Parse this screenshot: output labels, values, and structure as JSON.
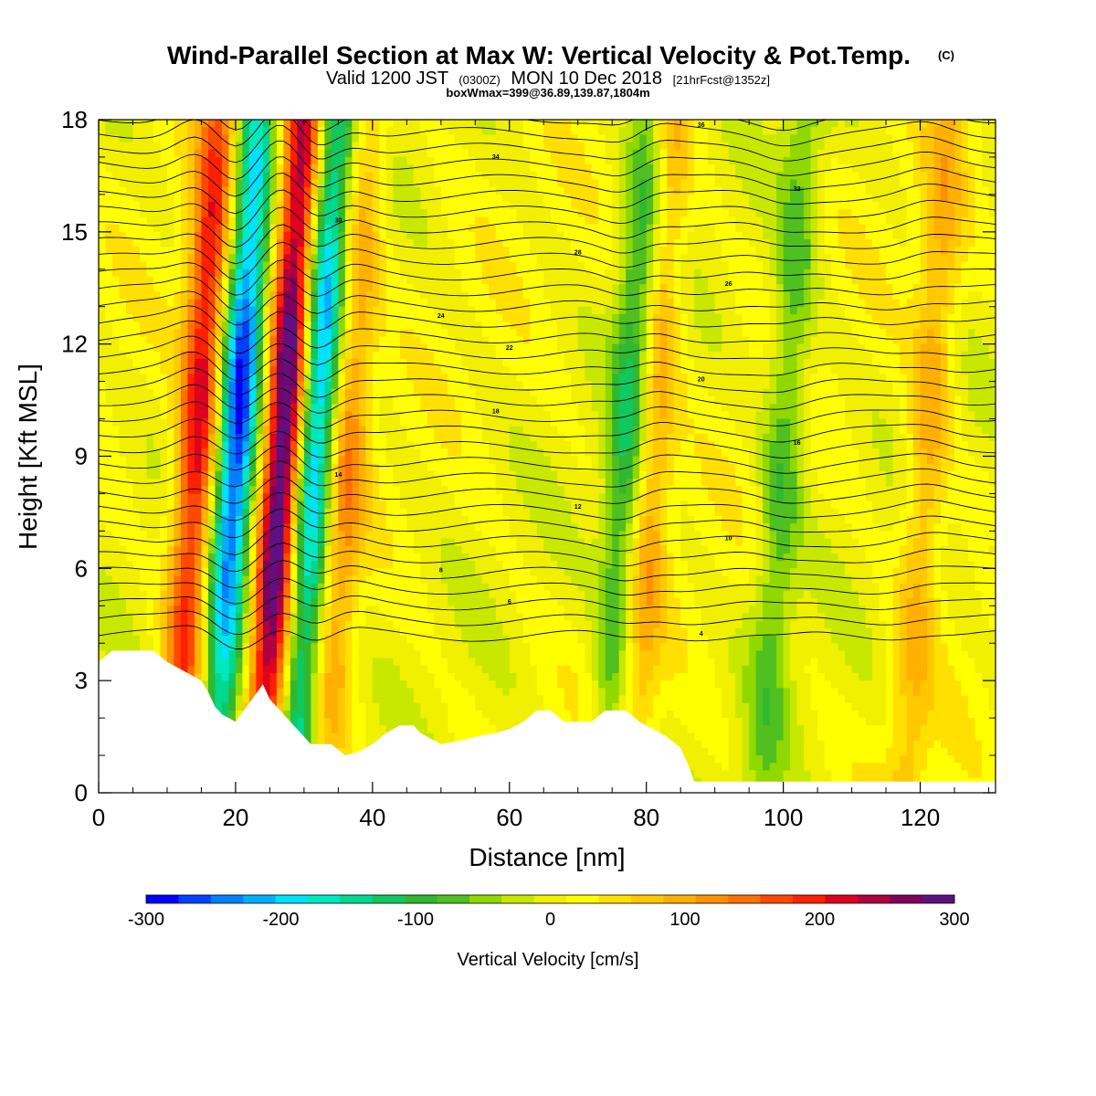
{
  "header": {
    "title": "Wind-Parallel Section at Max W: Vertical Velocity & Pot.Temp.",
    "copyright": "(C)",
    "valid_prefix": "Valid 1200 JST",
    "valid_utc": "(0300Z)",
    "valid_date": "MON 10 Dec 2018",
    "forecast": "[21hrFcst@1352z]",
    "box_info": "boxWmax=399@36.89,139.87,1804m"
  },
  "chart_data": {
    "type": "heatmap",
    "title": "Wind-Parallel Section at Max W: Vertical Velocity & Pot.Temp.",
    "xlabel": "Distance [nm]",
    "ylabel": "Height [Kft MSL]",
    "xlim": [
      0,
      131
    ],
    "ylim": [
      0,
      18
    ],
    "x_ticks": [
      "0",
      "20",
      "40",
      "60",
      "80",
      "100",
      "120"
    ],
    "y_ticks": [
      "0",
      "3",
      "6",
      "9",
      "12",
      "15",
      "18"
    ],
    "colorbar": {
      "label": "Vertical Velocity [cm/s]",
      "range": [
        -300,
        300
      ],
      "ticks": [
        "-300",
        "-200",
        "-100",
        "0",
        "100",
        "200",
        "300"
      ],
      "colors": [
        "#0000ff",
        "#0040ff",
        "#0080ff",
        "#00b0ff",
        "#00e0ff",
        "#00e8c0",
        "#00d890",
        "#10c860",
        "#30b830",
        "#50c020",
        "#90d800",
        "#c8e800",
        "#f0f000",
        "#ffff00",
        "#ffe000",
        "#ffc800",
        "#ffb000",
        "#ff9000",
        "#ff7000",
        "#ff4800",
        "#ff2000",
        "#e00020",
        "#b00040",
        "#800060",
        "#601080"
      ]
    },
    "updraft_bands": [
      {
        "x": 14.5,
        "w_peak": 220
      },
      {
        "x": 27,
        "w_peak": 330
      },
      {
        "x": 36,
        "w_peak": 120
      },
      {
        "x": 80.5,
        "w_peak": 120
      },
      {
        "x": 121,
        "w_peak": 90
      }
    ],
    "downdraft_bands": [
      {
        "x": 20,
        "w_peak": -280
      },
      {
        "x": 31.5,
        "w_peak": -260
      },
      {
        "x": 77.5,
        "w_peak": -140
      },
      {
        "x": 100,
        "w_peak": -90
      }
    ],
    "terrain": [
      [
        0,
        3.5
      ],
      [
        2,
        3.8
      ],
      [
        8,
        3.8
      ],
      [
        10,
        3.5
      ],
      [
        13,
        3.2
      ],
      [
        15,
        3.0
      ],
      [
        16,
        2.7
      ],
      [
        17,
        2.3
      ],
      [
        18,
        2.1
      ],
      [
        20,
        1.9
      ],
      [
        22,
        2.4
      ],
      [
        24,
        2.9
      ],
      [
        25,
        2.5
      ],
      [
        26,
        2.3
      ],
      [
        28,
        1.9
      ],
      [
        30,
        1.5
      ],
      [
        31,
        1.3
      ],
      [
        34,
        1.3
      ],
      [
        36,
        1.0
      ],
      [
        38,
        1.1
      ],
      [
        40,
        1.3
      ],
      [
        42,
        1.6
      ],
      [
        44,
        1.8
      ],
      [
        46,
        1.8
      ],
      [
        47,
        1.6
      ],
      [
        50,
        1.3
      ],
      [
        53,
        1.4
      ],
      [
        55,
        1.5
      ],
      [
        58,
        1.6
      ],
      [
        60,
        1.7
      ],
      [
        62,
        1.9
      ],
      [
        64,
        2.2
      ],
      [
        66,
        2.2
      ],
      [
        68,
        1.9
      ],
      [
        72,
        1.9
      ],
      [
        74,
        2.2
      ],
      [
        77,
        2.2
      ],
      [
        79,
        1.9
      ],
      [
        83,
        1.5
      ],
      [
        85,
        1.2
      ],
      [
        86,
        0.8
      ],
      [
        87,
        0.3
      ],
      [
        131,
        0.3
      ]
    ],
    "theta_contour_labels": [
      "4",
      "6",
      "8",
      "10",
      "12",
      "14",
      "16",
      "18",
      "20",
      "22",
      "24",
      "26",
      "28",
      "30",
      "32",
      "34",
      "36"
    ]
  }
}
